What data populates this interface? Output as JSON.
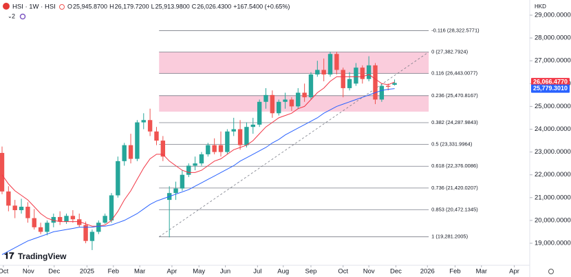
{
  "header": {
    "symbol": "HSI · 1W · HSI",
    "items": [
      {
        "key": "O",
        "value": "25,945.8700"
      },
      {
        "key": "H",
        "value": "26,179.7200"
      },
      {
        "key": "L",
        "value": "25,913.9800"
      },
      {
        "key": "C",
        "value": "26,026.4300"
      }
    ],
    "change": "+167.5400 (+0.65%)",
    "indicators": "2",
    "currency": "HKD",
    "logo": "TradingView"
  },
  "chart_data": {
    "type": "candlestick",
    "x": [
      0,
      1,
      2,
      3,
      4,
      5,
      6,
      7,
      8,
      9,
      10,
      11,
      12,
      13,
      14,
      15,
      16,
      17,
      18,
      19,
      20,
      21,
      22,
      23,
      24,
      25,
      26,
      27,
      28,
      29,
      30,
      31,
      32,
      33,
      34,
      35,
      36,
      37,
      38,
      39,
      40,
      41,
      42,
      43,
      44,
      45,
      46,
      47,
      48,
      49,
      50,
      51,
      52,
      53,
      54,
      55,
      56,
      57,
      58,
      59,
      60,
      61
    ],
    "open": [
      22960,
      21270,
      20650,
      20450,
      20600,
      20100,
      19700,
      19500,
      19900,
      20150,
      19950,
      20200,
      20050,
      19800,
      19100,
      19500,
      19900,
      20000,
      21100,
      22600,
      23300,
      22700,
      24300,
      24400,
      23900,
      23500,
      20900,
      21200,
      21400,
      22000,
      22400,
      22500,
      22900,
      23300,
      23300,
      23000,
      23900,
      24000,
      23300,
      24100,
      24200,
      25200,
      25500,
      24700,
      25200,
      25300,
      25000,
      25600,
      25400,
      26400,
      26600,
      26400,
      27300,
      26600,
      25800,
      26000,
      26700,
      26200,
      26800,
      25300,
      25900,
      25945.87
    ],
    "high": [
      23240,
      21500,
      20900,
      20950,
      20800,
      20500,
      19900,
      20000,
      20300,
      20400,
      20300,
      20450,
      20300,
      19950,
      19600,
      20000,
      20300,
      21200,
      22800,
      23400,
      23800,
      24400,
      24700,
      24900,
      24100,
      23700,
      21500,
      21700,
      22200,
      22500,
      22800,
      23000,
      23400,
      23600,
      23900,
      24000,
      24500,
      24400,
      24300,
      24500,
      25300,
      25800,
      25700,
      25300,
      25600,
      25400,
      25800,
      26000,
      26500,
      27000,
      27100,
      27400,
      27400,
      26700,
      26500,
      26900,
      26800,
      27200,
      26900,
      26000,
      26000,
      26179.72
    ],
    "low": [
      21150,
      20400,
      20100,
      20300,
      19900,
      19600,
      19400,
      19350,
      19700,
      19800,
      19850,
      19900,
      19700,
      19000,
      18700,
      19400,
      19850,
      19900,
      21000,
      22400,
      22500,
      22600,
      24000,
      23700,
      23300,
      22600,
      19260,
      20900,
      21300,
      21900,
      22200,
      22400,
      22800,
      22900,
      22800,
      22900,
      23700,
      23100,
      23200,
      23800,
      24100,
      24900,
      24500,
      24600,
      24900,
      24800,
      24900,
      25200,
      25300,
      26300,
      26100,
      26300,
      26400,
      25400,
      25700,
      25900,
      26000,
      26100,
      25100,
      25200,
      25700,
      25913.98
    ],
    "close": [
      21270,
      20650,
      20450,
      20600,
      20100,
      19700,
      19500,
      19900,
      20150,
      19950,
      20200,
      20050,
      19800,
      19100,
      19500,
      19900,
      20200,
      21100,
      22600,
      23300,
      22700,
      24300,
      24400,
      23900,
      23500,
      22800,
      21200,
      21400,
      22000,
      22400,
      22500,
      22900,
      23300,
      23000,
      23000,
      23900,
      24000,
      23300,
      24100,
      24200,
      25200,
      25500,
      24700,
      25200,
      25300,
      25000,
      25600,
      25400,
      26400,
      26600,
      26400,
      27300,
      26600,
      25800,
      26200,
      26700,
      26200,
      26800,
      25300,
      25900,
      25858.89,
      26026.43
    ],
    "up_color": "#26a69a",
    "down_color": "#ef5350",
    "series": [
      {
        "color": "#f23645",
        "last_label": "26,066.4770",
        "values": [
          22000,
          21600,
          21300,
          21100,
          20900,
          20600,
          20300,
          20100,
          20000,
          19950,
          19950,
          19950,
          19950,
          19850,
          19750,
          19750,
          19800,
          20000,
          20400,
          20900,
          21300,
          21800,
          22300,
          22700,
          22900,
          22900,
          22600,
          22400,
          22200,
          22100,
          22100,
          22200,
          22400,
          22600,
          22700,
          22900,
          23100,
          23200,
          23300,
          23500,
          23800,
          24100,
          24300,
          24500,
          24600,
          24700,
          24900,
          25000,
          25300,
          25600,
          25800,
          26100,
          26300,
          26300,
          26300,
          26300,
          26300,
          26400,
          26200,
          26000,
          25950,
          26066.477
        ]
      },
      {
        "color": "#2962ff",
        "last_label": "25,779.3010",
        "values": [
          18500,
          18650,
          18800,
          18950,
          19100,
          19200,
          19300,
          19400,
          19500,
          19550,
          19600,
          19650,
          19700,
          19700,
          19700,
          19750,
          19750,
          19800,
          19900,
          20000,
          20150,
          20300,
          20500,
          20700,
          20850,
          20950,
          21050,
          21150,
          21250,
          21350,
          21500,
          21650,
          21800,
          21950,
          22100,
          22250,
          22400,
          22600,
          22750,
          22900,
          23050,
          23200,
          23400,
          23550,
          23750,
          23900,
          24050,
          24200,
          24350,
          24500,
          24700,
          24850,
          25000,
          25100,
          25200,
          25300,
          25400,
          25500,
          25600,
          25700,
          25750,
          25779.301
        ]
      }
    ],
    "fib": {
      "xrange": [
        24.4,
        66.3
      ],
      "color": "#787b86",
      "levels": [
        {
          "label": "-0.116 (28,322.5771)",
          "price": 28322.5771
        },
        {
          "label": "0 (27,382.7924)",
          "price": 27382.7924
        },
        {
          "label": "0.116 (26,443.0077)",
          "price": 26443.0077
        },
        {
          "label": "0.236 (25,470.8167)",
          "price": 25470.8167
        },
        {
          "label": "0.382 (24,287.9843)",
          "price": 24287.9843
        },
        {
          "label": "0.5 (23,331.9964)",
          "price": 23331.9964
        },
        {
          "label": "0.618 (22,376.0086)",
          "price": 22376.0086
        },
        {
          "label": "0.736 (21,420.0207)",
          "price": 21420.0207
        },
        {
          "label": "0.853 (20,472.1345)",
          "price": 20472.1345
        },
        {
          "label": "1 (19,281.2005)",
          "price": 19281.2005
        }
      ],
      "zones": [
        [
          26443.0077,
          27382.7924
        ],
        [
          24770,
          25470.8167
        ]
      ],
      "zone_color": "#f8bbd0"
    },
    "xlim": [
      -0.32,
      82
    ],
    "ylim": [
      18033,
      29665
    ],
    "xticks": [
      {
        "value": 0.2,
        "label": "Oct"
      },
      {
        "value": 4.1,
        "label": "Nov"
      },
      {
        "value": 8.1,
        "label": "Dec"
      },
      {
        "value": 13.2,
        "label": "2025"
      },
      {
        "value": 17.3,
        "label": "Feb"
      },
      {
        "value": 21.4,
        "label": "Mar"
      },
      {
        "value": 26.4,
        "label": "Apr"
      },
      {
        "value": 30.6,
        "label": "May"
      },
      {
        "value": 34.7,
        "label": "Jun"
      },
      {
        "value": 39.7,
        "label": "Jul"
      },
      {
        "value": 43.7,
        "label": "Aug"
      },
      {
        "value": 48,
        "label": "Sep"
      },
      {
        "value": 53,
        "label": "Oct"
      },
      {
        "value": 57,
        "label": "Nov"
      },
      {
        "value": 61.2,
        "label": "Dec"
      },
      {
        "value": 66.1,
        "label": "2026"
      },
      {
        "value": 70.4,
        "label": "Feb"
      },
      {
        "value": 74.5,
        "label": "Mar"
      },
      {
        "value": 79.6,
        "label": "Apr"
      }
    ],
    "yticks": [
      {
        "value": 19000,
        "label": "19,000.0000"
      },
      {
        "value": 20000,
        "label": "20,000.0000"
      },
      {
        "value": 21000,
        "label": "21,000.0000"
      },
      {
        "value": 22000,
        "label": "22,000.0000"
      },
      {
        "value": 23000,
        "label": "23,000.0000"
      },
      {
        "value": 24000,
        "label": "24,000.0000"
      },
      {
        "value": 25000,
        "label": "25,000.0000"
      },
      {
        "value": 26000,
        "label": "26,000.0000"
      },
      {
        "value": 27000,
        "label": "27,000.0000"
      },
      {
        "value": 28000,
        "label": "28,000.0000"
      },
      {
        "value": 29000,
        "label": "29,000.0000"
      }
    ]
  }
}
